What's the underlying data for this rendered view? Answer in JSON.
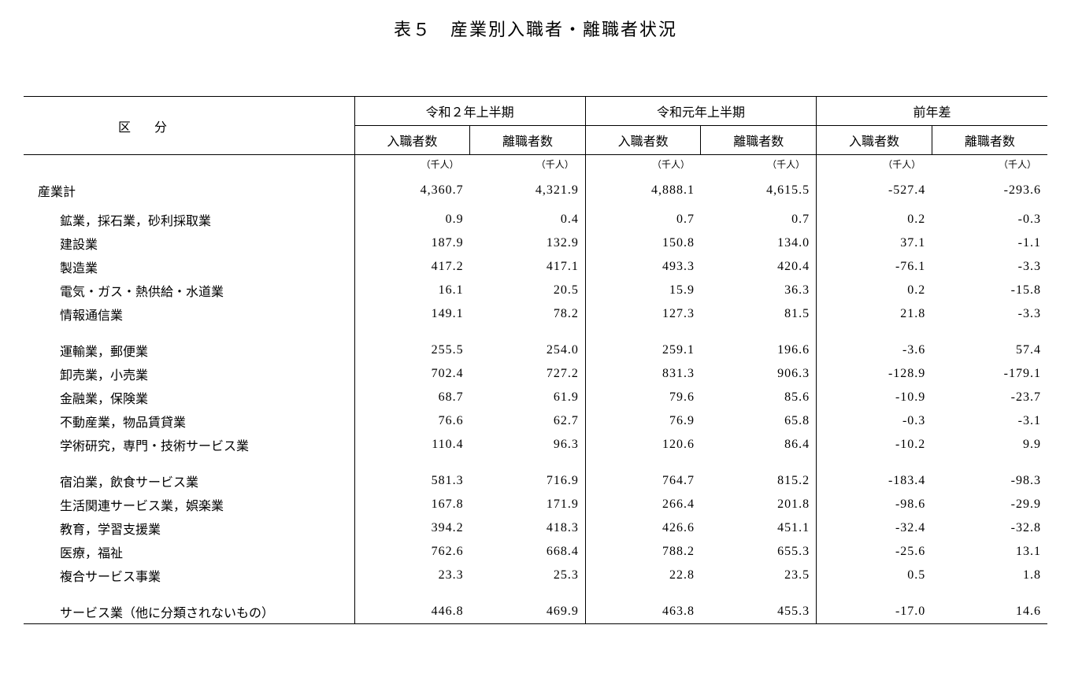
{
  "title": "表５　産業別入職者・離職者状況",
  "section_label": "区分",
  "unit_label": "（千人）",
  "groups": [
    {
      "label": "令和２年上半期",
      "sub": [
        "入職者数",
        "離職者数"
      ]
    },
    {
      "label": "令和元年上半期",
      "sub": [
        "入職者数",
        "離職者数"
      ]
    },
    {
      "label": "前年差",
      "sub": [
        "入職者数",
        "離職者数"
      ]
    }
  ],
  "total_row": {
    "label": "産業計",
    "values": [
      "4,360.7",
      "4,321.9",
      "4,888.1",
      "4,615.5",
      "-527.4",
      "-293.6"
    ]
  },
  "blocks": [
    [
      {
        "label": "鉱業，採石業，砂利採取業",
        "values": [
          "0.9",
          "0.4",
          "0.7",
          "0.7",
          "0.2",
          "-0.3"
        ]
      },
      {
        "label": "建設業",
        "values": [
          "187.9",
          "132.9",
          "150.8",
          "134.0",
          "37.1",
          "-1.1"
        ]
      },
      {
        "label": "製造業",
        "values": [
          "417.2",
          "417.1",
          "493.3",
          "420.4",
          "-76.1",
          "-3.3"
        ]
      },
      {
        "label": "電気・ガス・熱供給・水道業",
        "values": [
          "16.1",
          "20.5",
          "15.9",
          "36.3",
          "0.2",
          "-15.8"
        ]
      },
      {
        "label": "情報通信業",
        "values": [
          "149.1",
          "78.2",
          "127.3",
          "81.5",
          "21.8",
          "-3.3"
        ]
      }
    ],
    [
      {
        "label": "運輸業，郵便業",
        "values": [
          "255.5",
          "254.0",
          "259.1",
          "196.6",
          "-3.6",
          "57.4"
        ]
      },
      {
        "label": "卸売業，小売業",
        "values": [
          "702.4",
          "727.2",
          "831.3",
          "906.3",
          "-128.9",
          "-179.1"
        ]
      },
      {
        "label": "金融業，保険業",
        "values": [
          "68.7",
          "61.9",
          "79.6",
          "85.6",
          "-10.9",
          "-23.7"
        ]
      },
      {
        "label": "不動産業，物品賃貸業",
        "values": [
          "76.6",
          "62.7",
          "76.9",
          "65.8",
          "-0.3",
          "-3.1"
        ]
      },
      {
        "label": "学術研究，専門・技術サービス業",
        "values": [
          "110.4",
          "96.3",
          "120.6",
          "86.4",
          "-10.2",
          "9.9"
        ]
      }
    ],
    [
      {
        "label": "宿泊業，飲食サービス業",
        "values": [
          "581.3",
          "716.9",
          "764.7",
          "815.2",
          "-183.4",
          "-98.3"
        ]
      },
      {
        "label": "生活関連サービス業，娯楽業",
        "values": [
          "167.8",
          "171.9",
          "266.4",
          "201.8",
          "-98.6",
          "-29.9"
        ]
      },
      {
        "label": "教育，学習支援業",
        "values": [
          "394.2",
          "418.3",
          "426.6",
          "451.1",
          "-32.4",
          "-32.8"
        ]
      },
      {
        "label": "医療，福祉",
        "values": [
          "762.6",
          "668.4",
          "788.2",
          "655.3",
          "-25.6",
          "13.1"
        ]
      },
      {
        "label": "複合サービス事業",
        "values": [
          "23.3",
          "25.3",
          "22.8",
          "23.5",
          "0.5",
          "1.8"
        ]
      }
    ],
    [
      {
        "label": "サービス業（他に分類されないもの）",
        "values": [
          "446.8",
          "469.9",
          "463.8",
          "455.3",
          "-17.0",
          "14.6"
        ]
      }
    ]
  ]
}
